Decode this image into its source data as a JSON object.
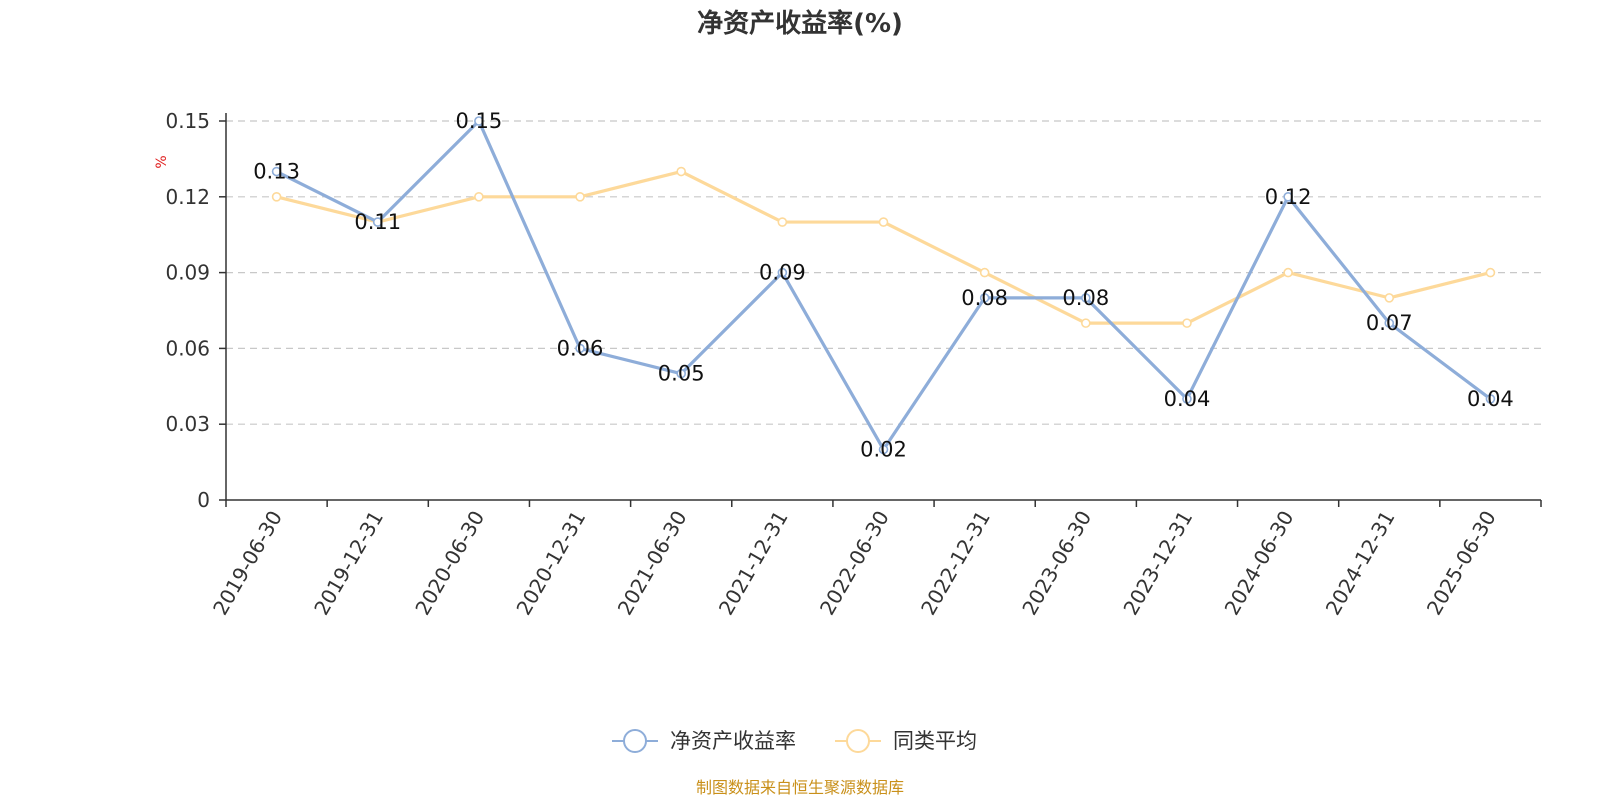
{
  "chart_data": {
    "type": "line",
    "title": "净资产收益率(%)",
    "y_unit": "%",
    "categories": [
      "2019-06-30",
      "2019-12-31",
      "2020-06-30",
      "2020-12-31",
      "2021-06-30",
      "2021-12-31",
      "2022-06-30",
      "2022-12-31",
      "2023-06-30",
      "2023-12-31",
      "2024-06-30",
      "2024-12-31",
      "2025-06-30"
    ],
    "y_ticks": [
      "0",
      "0.03",
      "0.06",
      "0.09",
      "0.12",
      "0.15"
    ],
    "ylim": [
      0,
      0.15
    ],
    "grid": "horizontal-dashed",
    "legend_position": "bottom-center",
    "series": [
      {
        "name": "净资产收益率",
        "color": "#8eadd9",
        "values": [
          0.13,
          0.11,
          0.15,
          0.06,
          0.05,
          0.09,
          0.02,
          0.08,
          0.08,
          0.04,
          0.12,
          0.07,
          0.04
        ],
        "labels": [
          "0.13",
          "0.11",
          "0.15",
          "0.06",
          "0.05",
          "0.09",
          "0.02",
          "0.08",
          "0.08",
          "0.04",
          "0.12",
          "0.07",
          "0.04"
        ]
      },
      {
        "name": "同类平均",
        "color": "#fdd99a",
        "values": [
          0.12,
          0.11,
          0.12,
          0.12,
          0.13,
          0.11,
          0.11,
          0.09,
          0.07,
          0.07,
          0.09,
          0.08,
          0.09
        ]
      }
    ],
    "source": "制图数据来自恒生聚源数据库"
  }
}
